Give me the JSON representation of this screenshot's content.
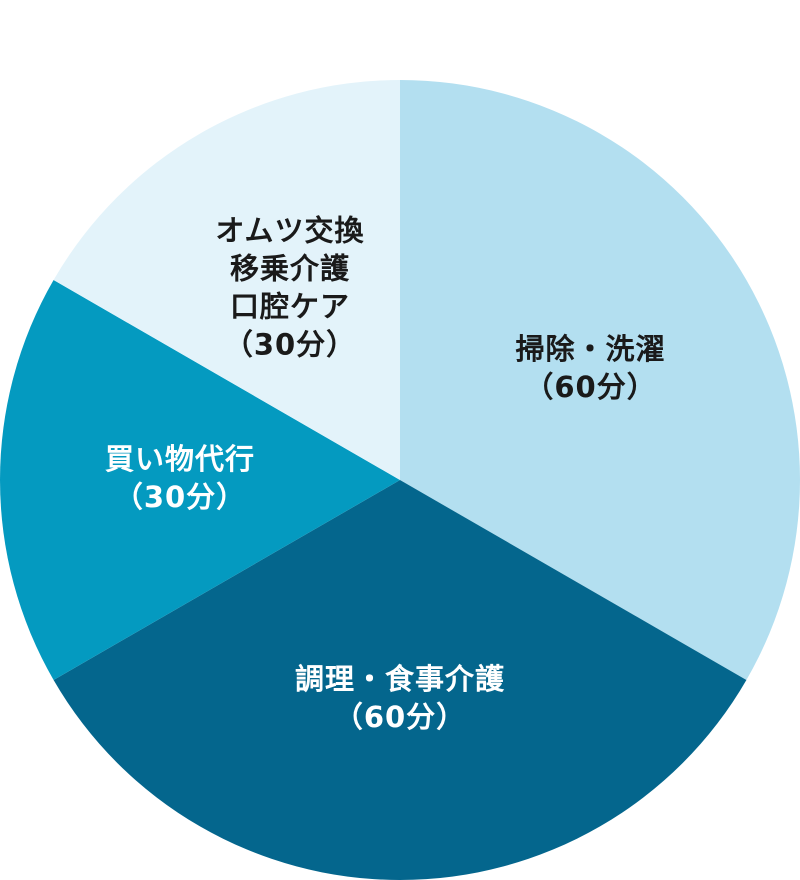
{
  "chart_data": {
    "type": "pie",
    "categories": [
      [
        "掃除・洗濯"
      ],
      [
        "調理・食事介護"
      ],
      [
        "買い物代行"
      ],
      [
        "オムツ交換",
        "移乗介護",
        "口腔ケア"
      ]
    ],
    "values": [
      60,
      60,
      30,
      30
    ],
    "value_labels": [
      "（60分）",
      "（60分）",
      "（30分）",
      "（30分）"
    ],
    "colors": [
      "#b3dff0",
      "#04668d",
      "#049ac0",
      "#e3f3fa"
    ]
  }
}
